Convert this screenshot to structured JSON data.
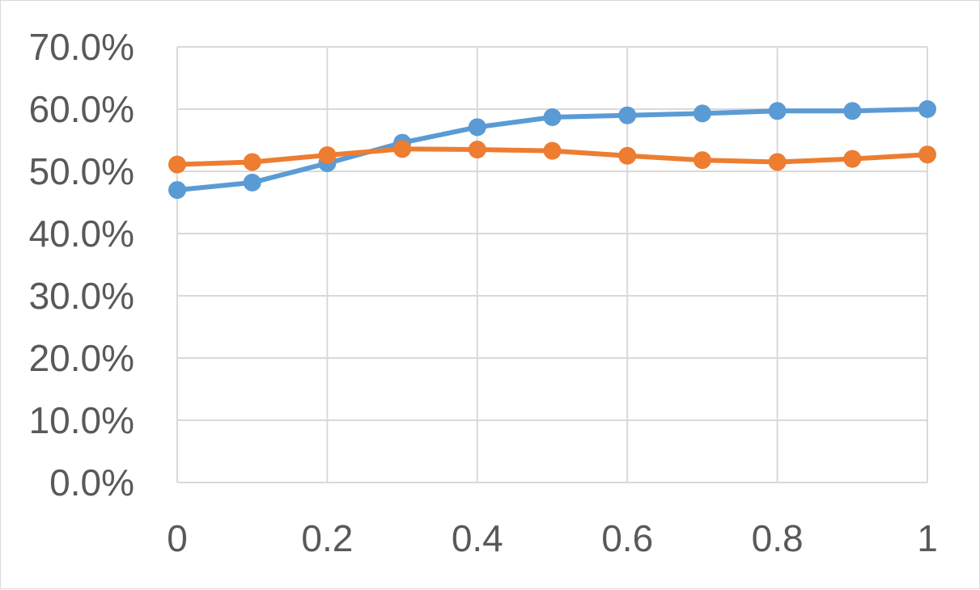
{
  "chart_data": {
    "type": "line",
    "title": "",
    "xlabel": "",
    "ylabel": "",
    "x": [
      0,
      0.1,
      0.2,
      0.3,
      0.4,
      0.5,
      0.6,
      0.7,
      0.8,
      0.9,
      1
    ],
    "xticks": [
      "0",
      "0.2",
      "0.4",
      "0.6",
      "0.8",
      "1"
    ],
    "xtick_values": [
      0,
      0.2,
      0.4,
      0.6,
      0.8,
      1
    ],
    "xlim": [
      0,
      1
    ],
    "yticks": [
      "0.0%",
      "10.0%",
      "20.0%",
      "30.0%",
      "40.0%",
      "50.0%",
      "60.0%",
      "70.0%"
    ],
    "ytick_values": [
      0,
      10,
      20,
      30,
      40,
      50,
      60,
      70
    ],
    "ylim": [
      0,
      70
    ],
    "grid": true,
    "legend": "none",
    "series": [
      {
        "color": "#5b9bd5",
        "values": [
          47.0,
          48.2,
          51.3,
          54.6,
          57.1,
          58.7,
          59.0,
          59.3,
          59.7,
          59.7,
          60.0
        ]
      },
      {
        "color": "#ed7d31",
        "values": [
          51.1,
          51.5,
          52.6,
          53.6,
          53.5,
          53.3,
          52.5,
          51.8,
          51.5,
          52.0,
          52.7
        ]
      }
    ]
  }
}
